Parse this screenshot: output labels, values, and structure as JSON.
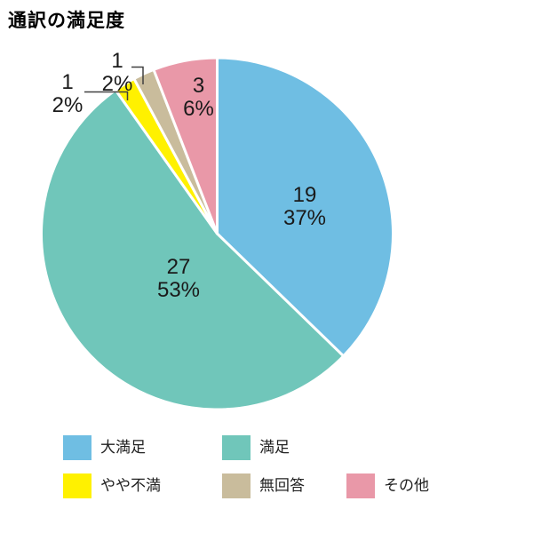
{
  "title": "通訳の満足度",
  "chart_data": {
    "type": "pie",
    "title": "通訳の満足度",
    "categories": [
      "大満足",
      "満足",
      "やや不満",
      "無回答",
      "その他"
    ],
    "values": [
      19,
      27,
      1,
      1,
      3
    ],
    "percent_labels": [
      "37%",
      "53%",
      "2%",
      "2%",
      "6%"
    ],
    "start_angle": "12 o'clock",
    "direction": "clockwise",
    "legend_position": "bottom",
    "slices": [
      {
        "label": "大満足",
        "value": 19,
        "pct": "37%",
        "color": "#6FBEE3"
      },
      {
        "label": "満足",
        "value": 27,
        "pct": "53%",
        "color": "#70C6BA"
      },
      {
        "label": "やや不満",
        "value": 1,
        "pct": "2%",
        "color": "#FFF100"
      },
      {
        "label": "無回答",
        "value": 1,
        "pct": "2%",
        "color": "#C9BC9C"
      },
      {
        "label": "その他",
        "value": 3,
        "pct": "6%",
        "color": "#E998A8"
      }
    ],
    "colors": {
      "slice_separator": "#ffffff",
      "label_text": "#1a1a1a",
      "leader_line": "#404040"
    }
  }
}
